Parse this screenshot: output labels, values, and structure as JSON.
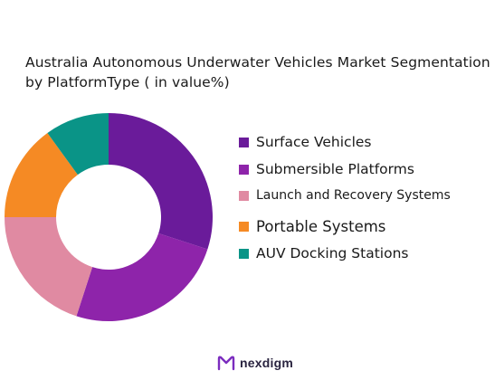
{
  "chart_data": {
    "type": "pie",
    "donut": true,
    "title": " Australia Autonomous Underwater Vehicles Market Segmentation by PlatformType ( in value%)",
    "categories": [
      "Surface Vehicles",
      "Submersible Platforms",
      "Launch and Recovery Systems",
      "Portable Systems",
      "AUV Docking Stations"
    ],
    "values": [
      30,
      25,
      20,
      15,
      10
    ],
    "colors": [
      "#6a1b9a",
      "#8e24aa",
      "#e08aa2",
      "#f58a24",
      "#0a9487"
    ],
    "legend_position": "right"
  },
  "legend": {
    "items": [
      {
        "label": "Surface Vehicles",
        "color": "#6a1b9a"
      },
      {
        "label": "Submersible Platforms",
        "color": "#8e24aa"
      },
      {
        "label": " Launch and Recovery Systems",
        "color": "#e08aa2"
      },
      {
        "label": "Portable Systems",
        "color": "#f58a24"
      },
      {
        "label": " AUV Docking Stations",
        "color": "#0a9487"
      }
    ]
  },
  "brand": {
    "name": "nexdigm",
    "icon": "nexdigm-logo-icon"
  }
}
